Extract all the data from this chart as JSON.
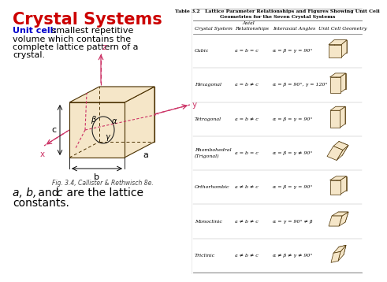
{
  "title": "Crystal Systems",
  "title_color": "#cc0000",
  "title_fontsize": 15,
  "unit_cell_label": "Unit cell:",
  "unit_cell_label_color": "#0000cc",
  "unit_cell_text": " smallest repetitive\nvolume which contains the\ncomplete lattice pattern of a\ncrystal.",
  "fig_caption": "Fig. 3.4, Callister & Rethwisch 8e.",
  "table_title_line1": "Table 3.2   Lattice Parameter Relationships and Figures Showing Unit Cell",
  "table_title_line2": "Geometries for the Seven Crystal Systems",
  "rows": [
    [
      "Cubic",
      "a = b = c",
      "α = β = γ = 90°",
      "cubic"
    ],
    [
      "Hexagonal",
      "a = b ≠ c",
      "α = β = 90°, γ = 120°",
      "hex"
    ],
    [
      "Tetragonal",
      "a = b ≠ c",
      "α = β = γ = 90°",
      "tetra"
    ],
    [
      "Rhombohedral\n(Trigonal)",
      "a = b = c",
      "α = β = γ ≠ 90°",
      "rhombo"
    ],
    [
      "Orthorhombic",
      "a ≠ b ≠ c",
      "α = β = γ = 90°",
      "ortho"
    ],
    [
      "Monoclinic",
      "a ≠ b ≠ c",
      "α = γ = 90° ≠ β",
      "mono"
    ],
    [
      "Triclinic",
      "a ≠ b ≠ c",
      "α ≠ β ≠ γ ≠ 90°",
      "triclinic"
    ]
  ],
  "bg_color": "#ffffff",
  "cell_face_color": "#f5e6c8",
  "cell_edge_color": "#4a3000",
  "axis_color": "#cc3366",
  "dim_color": "#222222"
}
